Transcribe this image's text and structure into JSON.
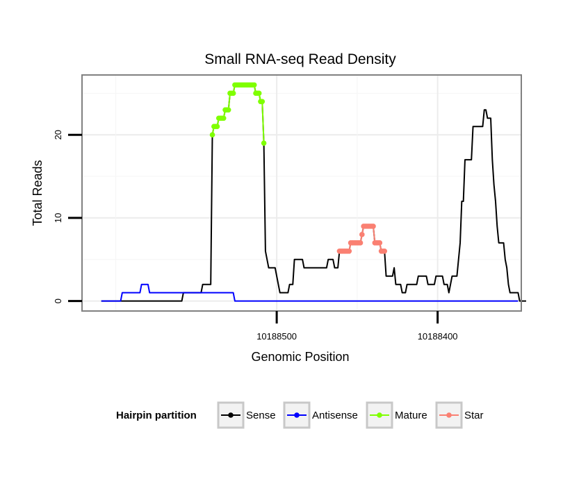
{
  "chart_data": {
    "type": "line",
    "title": "Small RNA-seq Read Density",
    "xlabel": "Genomic Position",
    "ylabel": "Total Reads",
    "x_reversed": true,
    "xlim": [
      10188621,
      10188348
    ],
    "ylim": [
      -1.2,
      27.2
    ],
    "x_ticks": [
      10188500,
      10188400
    ],
    "x_tick_labels": [
      "10188500",
      "10188400"
    ],
    "y_ticks": [
      0,
      10,
      20
    ],
    "y_tick_labels": [
      "0",
      "10",
      "20"
    ],
    "grid": true,
    "legend": {
      "title": "Hairpin partition",
      "position": "bottom",
      "entries": [
        "Sense",
        "Antisense",
        "Mature",
        "Star"
      ]
    },
    "colors": {
      "Sense": "#000000",
      "Antisense": "#0000ff",
      "Mature": "#7fff00",
      "Star": "#fa8072"
    },
    "series": [
      {
        "name": "Sense",
        "points": [
          [
            10188609,
            0
          ],
          [
            10188590,
            0
          ],
          [
            10188575,
            0
          ],
          [
            10188559,
            0
          ],
          [
            10188558,
            1
          ],
          [
            10188547,
            1
          ],
          [
            10188546,
            2
          ],
          [
            10188541,
            2
          ],
          [
            10188540,
            20
          ],
          [
            10188539,
            21
          ],
          [
            10188537,
            21
          ],
          [
            10188536,
            22
          ],
          [
            10188533,
            22
          ],
          [
            10188532,
            23
          ],
          [
            10188530,
            23
          ],
          [
            10188529,
            25
          ],
          [
            10188527,
            25
          ],
          [
            10188526,
            26
          ],
          [
            10188514,
            26
          ],
          [
            10188513,
            25
          ],
          [
            10188511,
            25
          ],
          [
            10188510,
            24
          ],
          [
            10188509,
            24
          ],
          [
            10188508,
            19
          ],
          [
            10188507,
            6
          ],
          [
            10188506,
            5
          ],
          [
            10188505,
            4
          ],
          [
            10188501,
            4
          ],
          [
            10188499,
            2
          ],
          [
            10188498,
            1
          ],
          [
            10188493,
            1
          ],
          [
            10188492,
            2
          ],
          [
            10188490,
            2
          ],
          [
            10188489,
            5
          ],
          [
            10188484,
            5
          ],
          [
            10188483,
            4
          ],
          [
            10188469,
            4
          ],
          [
            10188468,
            5
          ],
          [
            10188465,
            5
          ],
          [
            10188464,
            4
          ],
          [
            10188462,
            4
          ],
          [
            10188461,
            6
          ],
          [
            10188455,
            6
          ],
          [
            10188454,
            7
          ],
          [
            10188448,
            7
          ],
          [
            10188447,
            8
          ],
          [
            10188446,
            9
          ],
          [
            10188440,
            9
          ],
          [
            10188439,
            7
          ],
          [
            10188436,
            7
          ],
          [
            10188435,
            6
          ],
          [
            10188433,
            6
          ],
          [
            10188432,
            3
          ],
          [
            10188428,
            3
          ],
          [
            10188427,
            4
          ],
          [
            10188426,
            2
          ],
          [
            10188423,
            2
          ],
          [
            10188422,
            1
          ],
          [
            10188420,
            1
          ],
          [
            10188419,
            2
          ],
          [
            10188413,
            2
          ],
          [
            10188412,
            3
          ],
          [
            10188407,
            3
          ],
          [
            10188406,
            2
          ],
          [
            10188402,
            2
          ],
          [
            10188401,
            3
          ],
          [
            10188397,
            3
          ],
          [
            10188396,
            2
          ],
          [
            10188394,
            2
          ],
          [
            10188393,
            1
          ],
          [
            10188392,
            2
          ],
          [
            10188391,
            3
          ],
          [
            10188388,
            3
          ],
          [
            10188387,
            5
          ],
          [
            10188386,
            7
          ],
          [
            10188385,
            12
          ],
          [
            10188384,
            12
          ],
          [
            10188383,
            17
          ],
          [
            10188379,
            17
          ],
          [
            10188378,
            21
          ],
          [
            10188372,
            21
          ],
          [
            10188371,
            23
          ],
          [
            10188370,
            23
          ],
          [
            10188369,
            22
          ],
          [
            10188367,
            22
          ],
          [
            10188366,
            17
          ],
          [
            10188365,
            14
          ],
          [
            10188364,
            12
          ],
          [
            10188363,
            9
          ],
          [
            10188362,
            7
          ],
          [
            10188359,
            7
          ],
          [
            10188358,
            5
          ],
          [
            10188357,
            4
          ],
          [
            10188356,
            2
          ],
          [
            10188355,
            1
          ],
          [
            10188350,
            1
          ],
          [
            10188349,
            0
          ],
          [
            10188345,
            0
          ]
        ]
      },
      {
        "name": "Antisense",
        "points": [
          [
            10188609,
            0
          ],
          [
            10188597,
            0
          ],
          [
            10188596,
            1
          ],
          [
            10188585,
            1
          ],
          [
            10188584,
            2
          ],
          [
            10188580,
            2
          ],
          [
            10188579,
            1
          ],
          [
            10188527,
            1
          ],
          [
            10188526,
            0
          ],
          [
            10188350,
            0
          ]
        ]
      },
      {
        "name": "Mature",
        "points": [
          [
            10188540,
            20
          ],
          [
            10188539,
            21
          ],
          [
            10188538,
            21
          ],
          [
            10188537,
            21
          ],
          [
            10188536,
            22
          ],
          [
            10188535,
            22
          ],
          [
            10188534,
            22
          ],
          [
            10188533,
            22
          ],
          [
            10188532,
            23
          ],
          [
            10188531,
            23
          ],
          [
            10188530,
            23
          ],
          [
            10188529,
            25
          ],
          [
            10188528,
            25
          ],
          [
            10188527,
            25
          ],
          [
            10188526,
            26
          ],
          [
            10188525,
            26
          ],
          [
            10188524,
            26
          ],
          [
            10188523,
            26
          ],
          [
            10188522,
            26
          ],
          [
            10188521,
            26
          ],
          [
            10188520,
            26
          ],
          [
            10188519,
            26
          ],
          [
            10188518,
            26
          ],
          [
            10188517,
            26
          ],
          [
            10188516,
            26
          ],
          [
            10188515,
            26
          ],
          [
            10188514,
            26
          ],
          [
            10188513,
            25
          ],
          [
            10188512,
            25
          ],
          [
            10188511,
            25
          ],
          [
            10188510,
            24
          ],
          [
            10188509,
            24
          ],
          [
            10188508,
            19
          ]
        ]
      },
      {
        "name": "Star",
        "points": [
          [
            10188461,
            6
          ],
          [
            10188460,
            6
          ],
          [
            10188459,
            6
          ],
          [
            10188458,
            6
          ],
          [
            10188457,
            6
          ],
          [
            10188456,
            6
          ],
          [
            10188455,
            6
          ],
          [
            10188454,
            7
          ],
          [
            10188453,
            7
          ],
          [
            10188452,
            7
          ],
          [
            10188451,
            7
          ],
          [
            10188450,
            7
          ],
          [
            10188449,
            7
          ],
          [
            10188448,
            7
          ],
          [
            10188447,
            8
          ],
          [
            10188446,
            9
          ],
          [
            10188445,
            9
          ],
          [
            10188444,
            9
          ],
          [
            10188443,
            9
          ],
          [
            10188442,
            9
          ],
          [
            10188441,
            9
          ],
          [
            10188440,
            9
          ],
          [
            10188439,
            7
          ],
          [
            10188438,
            7
          ],
          [
            10188437,
            7
          ],
          [
            10188436,
            7
          ],
          [
            10188435,
            6
          ],
          [
            10188434,
            6
          ],
          [
            10188433,
            6
          ]
        ]
      }
    ]
  }
}
